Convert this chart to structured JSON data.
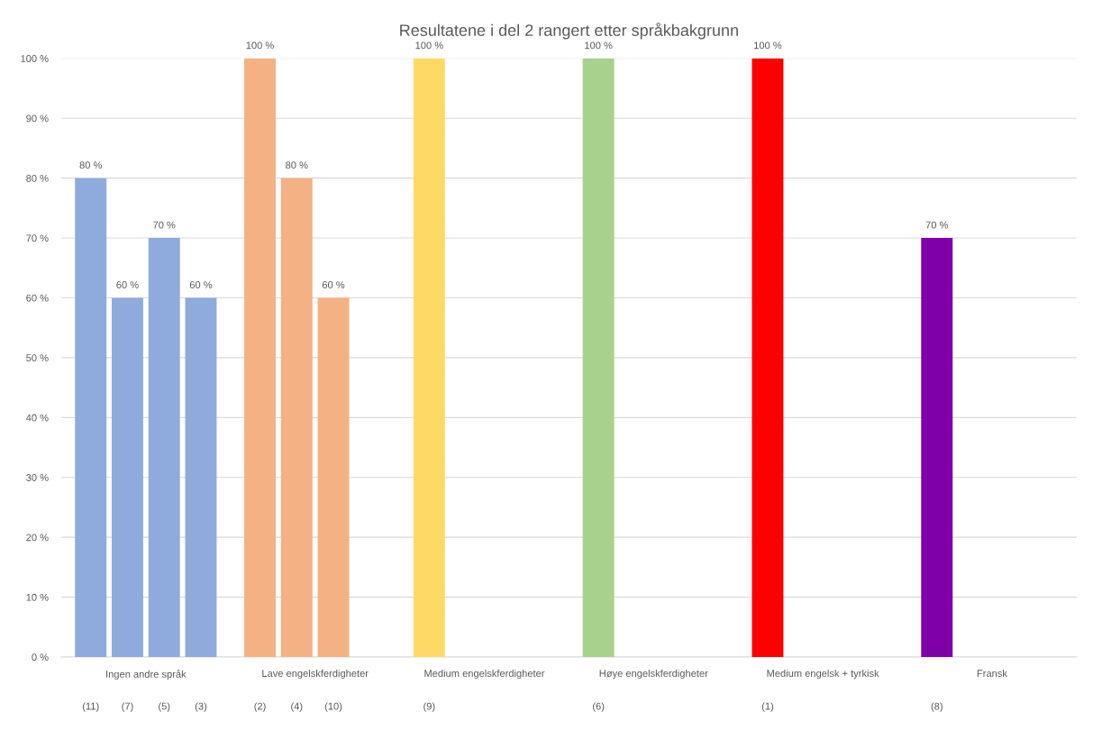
{
  "chart_data": {
    "type": "bar",
    "title": "Resultatene i del 2 rangert etter språkbakgrunn",
    "categories": [
      "Ingen andre språk",
      "Lave engelskferdigheter",
      "Medium engelskferdigheter",
      "Høye engelskferdigheter",
      "Medium engelsk + tyrkisk",
      "Fransk"
    ],
    "series": [
      {
        "colors": [
          "#8faadc",
          "#f4b183",
          "#ffd966",
          "#a9d18e",
          "#ff0000",
          "#7f00a8"
        ],
        "values": [
          80,
          100,
          100,
          100,
          100,
          70
        ],
        "value_labels": [
          "80 %",
          "100 %",
          "100 %",
          "100 %",
          "100 %",
          "70 %"
        ]
      },
      {
        "colors": [
          "#8faadc",
          "#f4b183",
          null,
          null,
          null,
          null
        ],
        "values": [
          60,
          80,
          null,
          null,
          null,
          null
        ],
        "value_labels": [
          "60 %",
          "80 %",
          null,
          null,
          null,
          null
        ]
      },
      {
        "colors": [
          "#8faadc",
          "#f4b183",
          null,
          null,
          null,
          null
        ],
        "values": [
          70,
          60,
          null,
          null,
          null,
          null
        ],
        "value_labels": [
          "70 %",
          "60 %",
          null,
          null,
          null,
          null
        ]
      },
      {
        "colors": [
          "#8faadc",
          null,
          null,
          null,
          null,
          null
        ],
        "values": [
          60,
          null,
          null,
          null,
          null,
          null
        ],
        "value_labels": [
          "60 %",
          null,
          null,
          null,
          null,
          null
        ]
      }
    ],
    "ylim": [
      0,
      100
    ],
    "yticks": [
      {
        "value": 0,
        "label": "0 %"
      },
      {
        "value": 10,
        "label": "10 %"
      },
      {
        "value": 20,
        "label": "20 %"
      },
      {
        "value": 30,
        "label": "30 %"
      },
      {
        "value": 40,
        "label": "40 %"
      },
      {
        "value": 50,
        "label": "50 %"
      },
      {
        "value": 60,
        "label": "60 %"
      },
      {
        "value": 70,
        "label": "70 %"
      },
      {
        "value": 80,
        "label": "80 %"
      },
      {
        "value": 90,
        "label": "90 %"
      },
      {
        "value": 100,
        "label": "100 %"
      }
    ],
    "grid": "y",
    "legend": false,
    "annotations": [
      "(11)",
      "(7)",
      "(5)",
      "(3)",
      "(2)",
      "(4)",
      "(10)",
      "(9)",
      "(6)",
      "(1)",
      "(8)"
    ]
  }
}
